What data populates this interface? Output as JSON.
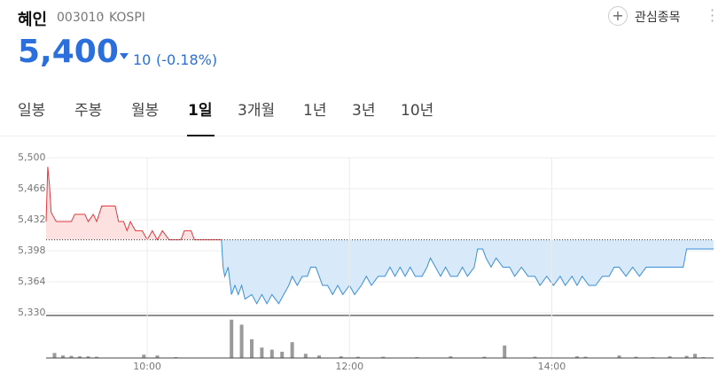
{
  "header": {
    "name": "혜인",
    "code": "003010",
    "market": "KOSPI",
    "watch": "관심종목"
  },
  "price": {
    "value": "5,400",
    "change": "10",
    "change_pct": "(-0.18%)"
  },
  "tabs": {
    "items": [
      "일봉",
      "주봉",
      "월봉",
      "1일",
      "3개월",
      "1년",
      "3년",
      "10년"
    ],
    "selected": 3
  },
  "chart_data": [
    {
      "type": "line",
      "x": [
        540,
        541,
        542,
        543,
        546,
        555,
        557,
        563,
        565,
        568,
        570,
        573,
        581,
        583,
        586,
        588,
        590,
        593,
        597,
        600,
        603,
        606,
        609,
        613,
        620,
        622,
        626,
        628,
        644,
        645,
        646,
        648,
        650,
        652,
        654,
        656,
        658,
        662,
        665,
        668,
        671,
        674,
        678,
        681,
        684,
        686,
        689,
        692,
        695,
        697,
        700,
        702,
        704,
        707,
        710,
        713,
        716,
        720,
        723,
        727,
        730,
        733,
        737,
        741,
        744,
        747,
        750,
        753,
        756,
        759,
        763,
        766,
        768,
        771,
        774,
        777,
        780,
        784,
        787,
        790,
        794,
        796,
        799,
        801,
        804,
        807,
        811,
        815,
        818,
        822,
        826,
        830,
        833,
        837,
        841,
        845,
        848,
        852,
        855,
        858,
        862,
        866,
        870,
        874,
        877,
        880,
        884,
        888,
        892,
        896,
        900,
        905,
        911,
        918,
        920,
        936
      ],
      "values": [
        5430,
        5490,
        5470,
        5440,
        5430,
        5430,
        5438,
        5438,
        5430,
        5438,
        5430,
        5447,
        5447,
        5430,
        5430,
        5420,
        5430,
        5420,
        5420,
        5410,
        5420,
        5410,
        5420,
        5410,
        5410,
        5420,
        5420,
        5410,
        5410,
        5380,
        5370,
        5380,
        5350,
        5360,
        5350,
        5360,
        5345,
        5350,
        5340,
        5350,
        5340,
        5350,
        5340,
        5350,
        5360,
        5370,
        5360,
        5370,
        5370,
        5380,
        5380,
        5370,
        5360,
        5360,
        5350,
        5360,
        5350,
        5360,
        5350,
        5360,
        5370,
        5360,
        5370,
        5370,
        5380,
        5370,
        5380,
        5370,
        5380,
        5370,
        5370,
        5380,
        5390,
        5380,
        5370,
        5380,
        5370,
        5370,
        5380,
        5370,
        5380,
        5400,
        5400,
        5390,
        5380,
        5390,
        5380,
        5380,
        5370,
        5380,
        5370,
        5370,
        5360,
        5370,
        5360,
        5370,
        5360,
        5370,
        5360,
        5370,
        5360,
        5360,
        5370,
        5370,
        5380,
        5380,
        5370,
        5380,
        5370,
        5380,
        5380,
        5380,
        5380,
        5380,
        5400,
        5400
      ],
      "reference": 5410,
      "xlim": [
        540,
        936
      ],
      "ylim": [
        5330,
        5500
      ],
      "yticks": [
        {
          "value": 5500,
          "label": "5,500"
        },
        {
          "value": 5466,
          "label": "5,466"
        },
        {
          "value": 5432,
          "label": "5,432"
        },
        {
          "value": 5398,
          "label": "5,398"
        },
        {
          "value": 5364,
          "label": "5,364"
        },
        {
          "value": 5330,
          "label": "5,330"
        }
      ],
      "grid": true,
      "up_color": "#e0383e",
      "up_fill": "#fde1e1",
      "down_color": "#3a8fd9",
      "down_fill": "#d8e9f9"
    },
    {
      "type": "bar",
      "x": [
        545,
        550,
        555,
        560,
        565,
        570,
        598,
        606,
        617,
        650,
        656,
        662,
        668,
        674,
        680,
        686,
        694,
        702,
        715,
        725,
        740,
        760,
        780,
        800,
        812,
        830,
        855,
        860,
        880,
        890,
        900,
        910,
        920,
        925,
        930
      ],
      "values": [
        12,
        6,
        5,
        4,
        4,
        3,
        8,
        6,
        2,
        92,
        80,
        45,
        25,
        20,
        15,
        38,
        10,
        6,
        4,
        3,
        3,
        2,
        4,
        3,
        30,
        3,
        4,
        3,
        6,
        3,
        2,
        4,
        5,
        10,
        2
      ],
      "xlim": [
        540,
        936
      ],
      "ylim": [
        0,
        100
      ],
      "xticks": [
        {
          "value": 600,
          "label": "10:00"
        },
        {
          "value": 720,
          "label": "12:00"
        },
        {
          "value": 840,
          "label": "14:00"
        }
      ],
      "color": "#9a9a9a"
    }
  ]
}
